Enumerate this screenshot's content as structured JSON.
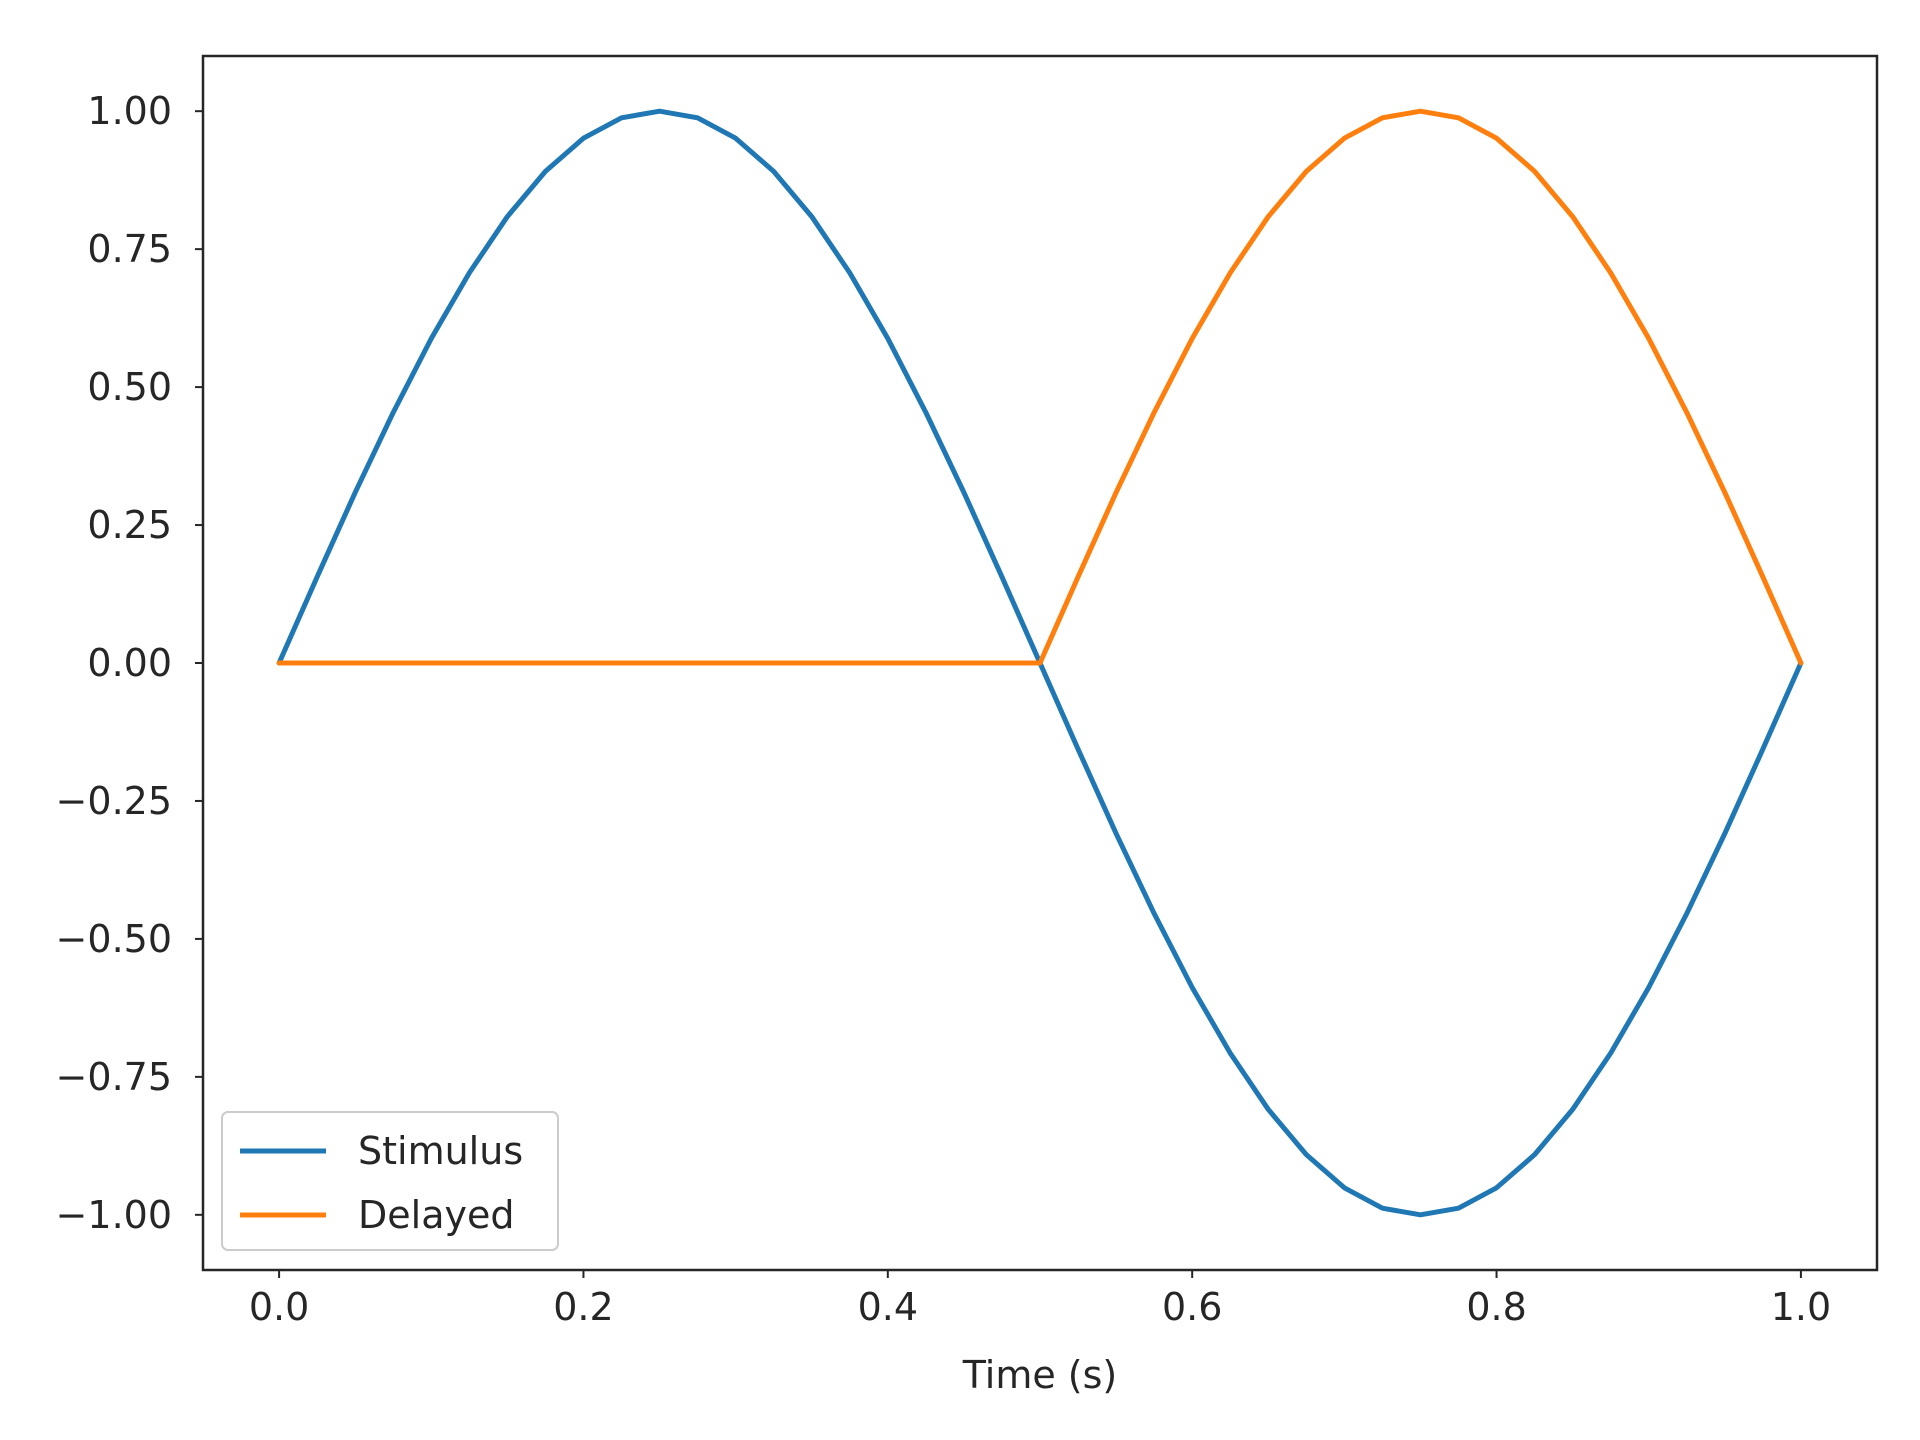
{
  "chart_data": {
    "type": "line",
    "xlabel": "Time (s)",
    "ylabel": "",
    "xlim": [
      -0.05,
      1.05
    ],
    "ylim": [
      -1.1,
      1.1
    ],
    "xticks": [
      0.0,
      0.2,
      0.4,
      0.6,
      0.8,
      1.0
    ],
    "xtick_labels": [
      "0.0",
      "0.2",
      "0.4",
      "0.6",
      "0.8",
      "1.0"
    ],
    "yticks": [
      1.0,
      0.75,
      0.5,
      0.25,
      0.0,
      -0.25,
      -0.5,
      -0.75,
      -1.0
    ],
    "ytick_labels": [
      "1.00",
      "0.75",
      "0.50",
      "0.25",
      "0.00",
      "−0.25",
      "−0.50",
      "−0.75",
      "−1.00"
    ],
    "grid": false,
    "legend_position": "lower-left",
    "series": [
      {
        "name": "Stimulus",
        "color": "#1f77b4",
        "x": [
          0.0,
          0.025,
          0.05,
          0.075,
          0.1,
          0.125,
          0.15,
          0.175,
          0.2,
          0.225,
          0.25,
          0.275,
          0.3,
          0.325,
          0.35,
          0.375,
          0.4,
          0.425,
          0.45,
          0.475,
          0.5,
          0.525,
          0.55,
          0.575,
          0.6,
          0.625,
          0.65,
          0.675,
          0.7,
          0.725,
          0.75,
          0.775,
          0.8,
          0.825,
          0.85,
          0.875,
          0.9,
          0.925,
          0.95,
          0.975,
          1.0
        ],
        "y": [
          0.0,
          0.156,
          0.309,
          0.454,
          0.588,
          0.707,
          0.809,
          0.891,
          0.951,
          0.988,
          1.0,
          0.988,
          0.951,
          0.891,
          0.809,
          0.707,
          0.588,
          0.454,
          0.309,
          0.156,
          0.0,
          -0.156,
          -0.309,
          -0.454,
          -0.588,
          -0.707,
          -0.809,
          -0.891,
          -0.951,
          -0.988,
          -1.0,
          -0.988,
          -0.951,
          -0.891,
          -0.809,
          -0.707,
          -0.588,
          -0.454,
          -0.309,
          -0.156,
          0.0
        ]
      },
      {
        "name": "Delayed",
        "color": "#ff7f0e",
        "x": [
          0.0,
          0.025,
          0.05,
          0.075,
          0.1,
          0.125,
          0.15,
          0.175,
          0.2,
          0.225,
          0.25,
          0.275,
          0.3,
          0.325,
          0.35,
          0.375,
          0.4,
          0.425,
          0.45,
          0.475,
          0.5,
          0.525,
          0.55,
          0.575,
          0.6,
          0.625,
          0.65,
          0.675,
          0.7,
          0.725,
          0.75,
          0.775,
          0.8,
          0.825,
          0.85,
          0.875,
          0.9,
          0.925,
          0.95,
          0.975,
          1.0
        ],
        "y": [
          0.0,
          0.0,
          0.0,
          0.0,
          0.0,
          0.0,
          0.0,
          0.0,
          0.0,
          0.0,
          0.0,
          0.0,
          0.0,
          0.0,
          0.0,
          0.0,
          0.0,
          0.0,
          0.0,
          0.0,
          0.0,
          0.156,
          0.309,
          0.454,
          0.588,
          0.707,
          0.809,
          0.891,
          0.951,
          0.988,
          1.0,
          0.988,
          0.951,
          0.891,
          0.809,
          0.707,
          0.588,
          0.454,
          0.309,
          0.156,
          0.0
        ]
      }
    ]
  }
}
